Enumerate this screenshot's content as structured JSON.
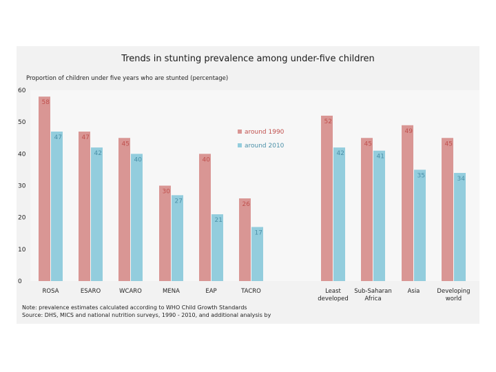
{
  "chart_data": {
    "type": "bar",
    "title": "Trends in stunting prevalence among under-five children",
    "subtitle": "Proportion of children under five years who are stunted (percentage)",
    "xlabel": "",
    "ylabel": "",
    "ylim": [
      0,
      60
    ],
    "yticks": [
      0,
      10,
      20,
      30,
      40,
      50,
      60
    ],
    "grid": false,
    "legend_position": "center",
    "categories": [
      "ROSA",
      "ESARO",
      "WCARO",
      "MENA",
      "EAP",
      "TACRO",
      "Least developed",
      "Sub-Saharan Africa",
      "Asia",
      "Developing world"
    ],
    "category_lines": [
      [
        "ROSA"
      ],
      [
        "ESARO"
      ],
      [
        "WCARO"
      ],
      [
        "MENA"
      ],
      [
        "EAP"
      ],
      [
        "TACRO"
      ],
      [
        "Least",
        "developed"
      ],
      [
        "Sub-Saharan",
        "Africa"
      ],
      [
        "Asia"
      ],
      [
        "Developing",
        "world"
      ]
    ],
    "series": [
      {
        "name": "around 1990",
        "color": "#d99694",
        "values": [
          58,
          47,
          45,
          30,
          40,
          26,
          52,
          45,
          49,
          45
        ]
      },
      {
        "name": "around 2010",
        "color": "#93cddd",
        "values": [
          47,
          42,
          40,
          27,
          21,
          17,
          42,
          41,
          35,
          34
        ]
      }
    ],
    "label_colors": {
      "around 1990": "#c0504d",
      "around 2010": "#4a90a8"
    },
    "note_lines": [
      "Note: prevalence estimates calculated according to WHO Child Growth Standards",
      "Source: DHS, MICS and national nutrition surveys, 1990 - 2010, and additional analysis by"
    ]
  }
}
